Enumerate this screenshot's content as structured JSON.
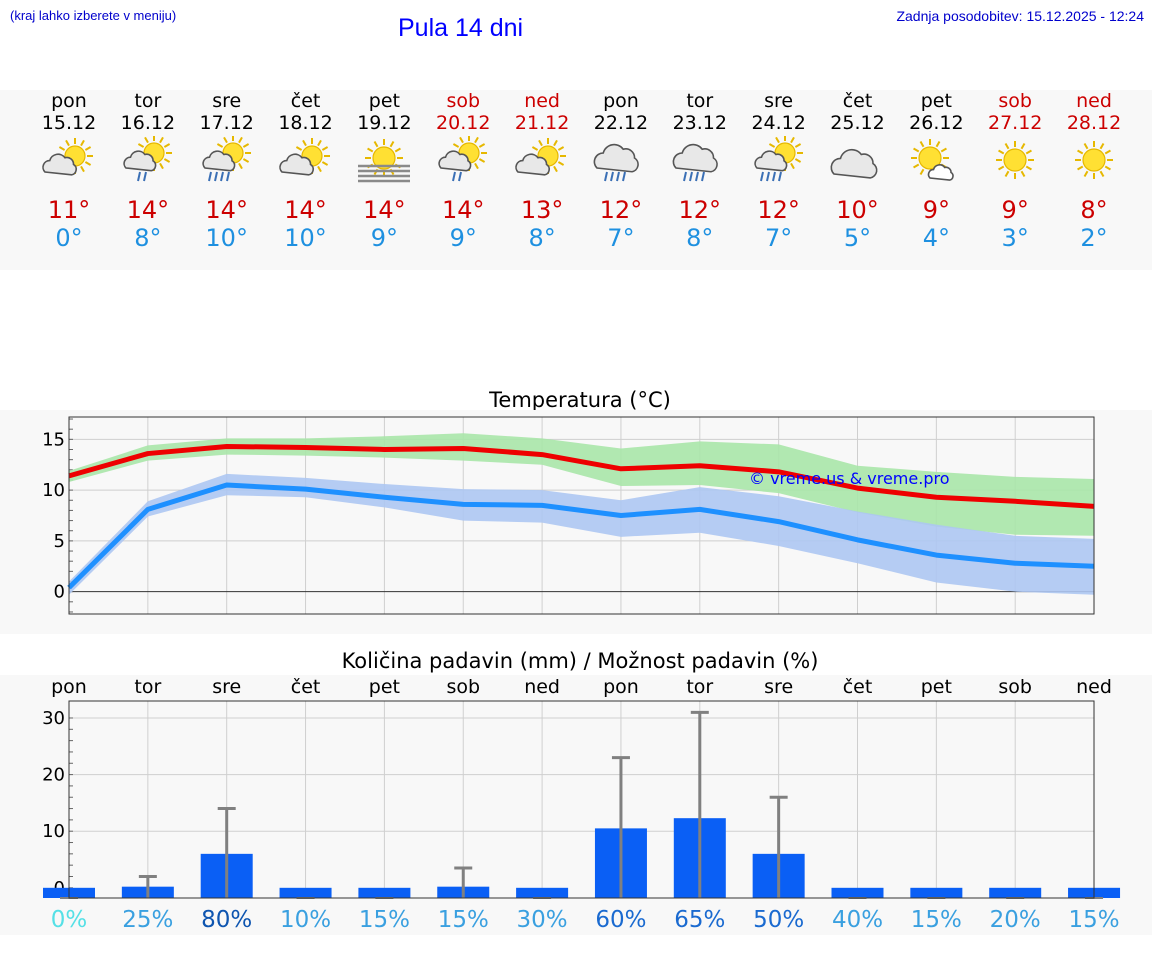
{
  "header": {
    "hint": "(kraj lahko izberete v meniju)",
    "title": "Pula 14 dni",
    "updated": "Zadnja posodobitev: 15.12.2025 - 12:24"
  },
  "days": [
    {
      "name": "pon",
      "date": "15.12",
      "weekend": false,
      "icon": "sun-cloud-icon",
      "max": "11°",
      "min": "0°"
    },
    {
      "name": "tor",
      "date": "16.12",
      "weekend": false,
      "icon": "sun-cloud-light-rain-icon",
      "max": "14°",
      "min": "8°"
    },
    {
      "name": "sre",
      "date": "17.12",
      "weekend": false,
      "icon": "sun-cloud-rain-icon",
      "max": "14°",
      "min": "10°"
    },
    {
      "name": "čet",
      "date": "18.12",
      "weekend": false,
      "icon": "sun-cloud-icon",
      "max": "14°",
      "min": "10°"
    },
    {
      "name": "pet",
      "date": "19.12",
      "weekend": false,
      "icon": "sun-fog-icon",
      "max": "14°",
      "min": "9°"
    },
    {
      "name": "sob",
      "date": "20.12",
      "weekend": true,
      "icon": "sun-cloud-light-rain-icon",
      "max": "14°",
      "min": "9°"
    },
    {
      "name": "ned",
      "date": "21.12",
      "weekend": true,
      "icon": "sun-cloud-icon",
      "max": "13°",
      "min": "8°"
    },
    {
      "name": "pon",
      "date": "22.12",
      "weekend": false,
      "icon": "cloud-rain-icon",
      "max": "12°",
      "min": "7°"
    },
    {
      "name": "tor",
      "date": "23.12",
      "weekend": false,
      "icon": "cloud-rain-icon",
      "max": "12°",
      "min": "8°"
    },
    {
      "name": "sre",
      "date": "24.12",
      "weekend": false,
      "icon": "sun-cloud-rain-icon",
      "max": "12°",
      "min": "7°"
    },
    {
      "name": "čet",
      "date": "25.12",
      "weekend": false,
      "icon": "cloudy-icon",
      "max": "10°",
      "min": "5°"
    },
    {
      "name": "pet",
      "date": "26.12",
      "weekend": false,
      "icon": "sun-small-cloud-icon",
      "max": "9°",
      "min": "4°"
    },
    {
      "name": "sob",
      "date": "27.12",
      "weekend": true,
      "icon": "sun-icon",
      "max": "9°",
      "min": "3°"
    },
    {
      "name": "ned",
      "date": "28.12",
      "weekend": true,
      "icon": "sun-icon",
      "max": "8°",
      "min": "2°"
    }
  ],
  "colors": {
    "max_line": "#ee0000",
    "min_line": "#1e90ff",
    "max_band": "#a8e6a8",
    "min_band": "#adc6f2",
    "bar": "#0a5ff5",
    "whisker": "#808080",
    "copyright": "#0000ff"
  },
  "chart_data": [
    {
      "type": "line",
      "title": "Temperatura (°C)",
      "watermark": "© vreme.us & vreme.pro",
      "x": [
        "15.12",
        "16.12",
        "17.12",
        "18.12",
        "19.12",
        "20.12",
        "21.12",
        "22.12",
        "23.12",
        "24.12",
        "25.12",
        "26.12",
        "27.12",
        "28.12"
      ],
      "ylim": [
        -2.2,
        17.2
      ],
      "yticks": [
        0,
        5,
        10,
        15
      ],
      "grid": true,
      "series": [
        {
          "name": "max",
          "values": [
            11.4,
            13.6,
            14.3,
            14.2,
            14.0,
            14.1,
            13.5,
            12.1,
            12.4,
            11.8,
            10.2,
            9.3,
            8.9,
            8.4
          ],
          "band_low": [
            10.8,
            12.9,
            13.5,
            13.4,
            13.2,
            12.9,
            12.5,
            10.4,
            10.5,
            9.7,
            7.8,
            6.4,
            5.6,
            5.5
          ],
          "band_high": [
            11.9,
            14.4,
            15.1,
            15.1,
            15.3,
            15.6,
            15.1,
            14.1,
            14.8,
            14.5,
            12.4,
            11.8,
            11.3,
            11.1
          ]
        },
        {
          "name": "min",
          "values": [
            0.4,
            8.1,
            10.5,
            10.1,
            9.3,
            8.6,
            8.5,
            7.5,
            8.1,
            6.9,
            5.1,
            3.6,
            2.8,
            2.5
          ],
          "band_low": [
            -0.3,
            7.4,
            9.5,
            9.3,
            8.3,
            7.0,
            6.8,
            5.4,
            5.8,
            4.5,
            2.8,
            0.9,
            0.0,
            -0.3
          ],
          "band_high": [
            1.0,
            8.9,
            11.6,
            11.2,
            10.6,
            10.1,
            10.0,
            9.0,
            10.3,
            9.4,
            7.9,
            6.6,
            5.5,
            5.2
          ]
        }
      ]
    },
    {
      "type": "bar",
      "title": "Količina padavin (mm) / Možnost padavin (%)",
      "categories": [
        "pon",
        "tor",
        "sre",
        "čet",
        "pet",
        "sob",
        "ned",
        "pon",
        "tor",
        "sre",
        "čet",
        "pet",
        "sob",
        "ned"
      ],
      "ylim": [
        -1.8,
        33
      ],
      "yticks": [
        0,
        10,
        20,
        30
      ],
      "grid": true,
      "values": [
        0,
        0.2,
        6,
        0,
        0,
        0.2,
        0,
        10.5,
        12.3,
        6,
        0,
        0,
        0,
        0
      ],
      "max_values": [
        0,
        2,
        14,
        0,
        0,
        3.5,
        0,
        23,
        31,
        16,
        0,
        0,
        0,
        0
      ],
      "probability": [
        "0%",
        "25%",
        "80%",
        "10%",
        "15%",
        "15%",
        "30%",
        "60%",
        "65%",
        "50%",
        "40%",
        "15%",
        "20%",
        "15%"
      ],
      "probability_colors": [
        "#55e0e6",
        "#3aa0e0",
        "#0e55b0",
        "#3aa0e0",
        "#3aa0e0",
        "#3aa0e0",
        "#3aa0e0",
        "#1a6ad0",
        "#1a6ad0",
        "#1a6ad0",
        "#3aa0e0",
        "#3aa0e0",
        "#3aa0e0",
        "#3aa0e0"
      ]
    }
  ]
}
